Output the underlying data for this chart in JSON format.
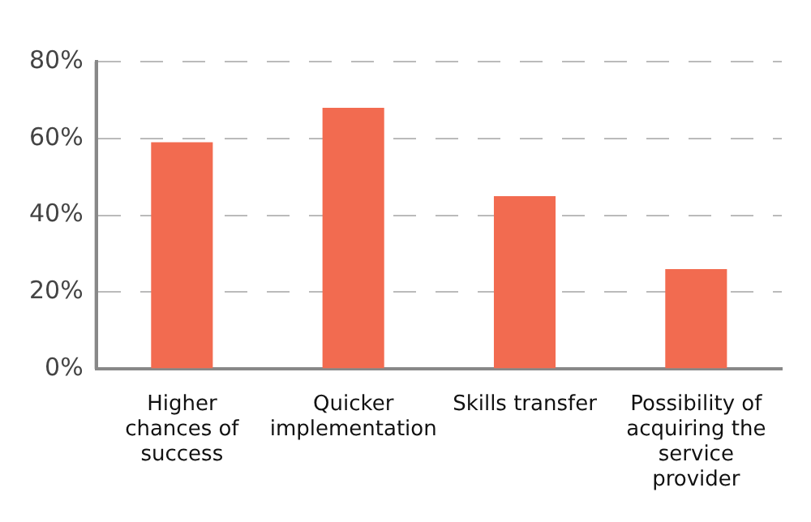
{
  "chart_data": {
    "type": "bar",
    "categories": [
      "Higher chances of success",
      "Quicker implementation",
      "Skills transfer",
      "Possibility of acquiring the service provider"
    ],
    "values": [
      59,
      68,
      45,
      26
    ],
    "color": "#f26b50",
    "ylim": [
      0,
      80
    ],
    "yticks": [
      {
        "value": 0,
        "label": "0%"
      },
      {
        "value": 20,
        "label": "20%"
      },
      {
        "value": 40,
        "label": "40%"
      },
      {
        "value": 60,
        "label": "60%"
      },
      {
        "value": 80,
        "label": "80%"
      }
    ],
    "grid": "y",
    "legend": false
  }
}
